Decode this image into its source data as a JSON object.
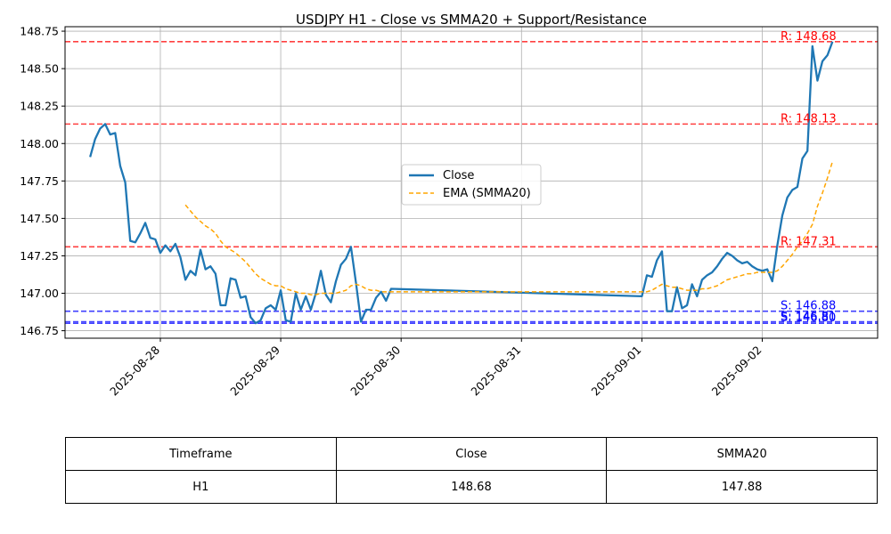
{
  "chart_data": {
    "type": "line",
    "title": "USDJPY H1 - Close vs SMMA20 + Support/Resistance",
    "xlim": [
      "2025-08-27 05:00",
      "2025-09-02 23:00"
    ],
    "ylim": [
      146.7,
      148.78
    ],
    "y_ticks": [
      146.75,
      147.0,
      147.25,
      147.5,
      147.75,
      148.0,
      148.25,
      148.5,
      148.75
    ],
    "y_tick_labels": [
      "146.75",
      "147.00",
      "147.25",
      "147.50",
      "147.75",
      "148.00",
      "148.25",
      "148.50",
      "148.75"
    ],
    "x_ticks": [
      "2025-08-28 00:00",
      "2025-08-29 00:00",
      "2025-08-30 00:00",
      "2025-08-31 00:00",
      "2025-09-01 00:00",
      "2025-09-02 00:00"
    ],
    "x_tick_labels": [
      "2025-08-28",
      "2025-08-29",
      "2025-08-30",
      "2025-08-31",
      "2025-09-01",
      "2025-09-02"
    ],
    "grid": true,
    "legend": {
      "placement": "center",
      "entries": [
        "Close",
        "EMA (SMMA20)"
      ]
    },
    "series": [
      {
        "name": "Close",
        "color": "#1f77b4",
        "style": "solid",
        "points": [
          [
            "2025-08-27 10:00",
            147.91
          ],
          [
            "2025-08-27 11:00",
            148.03
          ],
          [
            "2025-08-27 12:00",
            148.1
          ],
          [
            "2025-08-27 13:00",
            148.13
          ],
          [
            "2025-08-27 14:00",
            148.06
          ],
          [
            "2025-08-27 15:00",
            148.07
          ],
          [
            "2025-08-27 16:00",
            147.85
          ],
          [
            "2025-08-27 17:00",
            147.74
          ],
          [
            "2025-08-27 18:00",
            147.35
          ],
          [
            "2025-08-27 19:00",
            147.34
          ],
          [
            "2025-08-27 20:00",
            147.4
          ],
          [
            "2025-08-27 21:00",
            147.47
          ],
          [
            "2025-08-27 22:00",
            147.37
          ],
          [
            "2025-08-27 23:00",
            147.36
          ],
          [
            "2025-08-28 00:00",
            147.27
          ],
          [
            "2025-08-28 01:00",
            147.32
          ],
          [
            "2025-08-28 02:00",
            147.28
          ],
          [
            "2025-08-28 03:00",
            147.33
          ],
          [
            "2025-08-28 04:00",
            147.24
          ],
          [
            "2025-08-28 05:00",
            147.09
          ],
          [
            "2025-08-28 06:00",
            147.15
          ],
          [
            "2025-08-28 07:00",
            147.12
          ],
          [
            "2025-08-28 08:00",
            147.29
          ],
          [
            "2025-08-28 09:00",
            147.16
          ],
          [
            "2025-08-28 10:00",
            147.18
          ],
          [
            "2025-08-28 11:00",
            147.13
          ],
          [
            "2025-08-28 12:00",
            146.92
          ],
          [
            "2025-08-28 13:00",
            146.92
          ],
          [
            "2025-08-28 14:00",
            147.1
          ],
          [
            "2025-08-28 15:00",
            147.09
          ],
          [
            "2025-08-28 16:00",
            146.97
          ],
          [
            "2025-08-28 17:00",
            146.98
          ],
          [
            "2025-08-28 18:00",
            146.84
          ],
          [
            "2025-08-28 19:00",
            146.8
          ],
          [
            "2025-08-28 20:00",
            146.82
          ],
          [
            "2025-08-28 21:00",
            146.9
          ],
          [
            "2025-08-28 22:00",
            146.92
          ],
          [
            "2025-08-28 23:00",
            146.89
          ],
          [
            "2025-08-29 00:00",
            147.02
          ],
          [
            "2025-08-29 01:00",
            146.82
          ],
          [
            "2025-08-29 02:00",
            146.81
          ],
          [
            "2025-08-29 03:00",
            147.0
          ],
          [
            "2025-08-29 04:00",
            146.89
          ],
          [
            "2025-08-29 05:00",
            146.98
          ],
          [
            "2025-08-29 06:00",
            146.89
          ],
          [
            "2025-08-29 07:00",
            147.0
          ],
          [
            "2025-08-29 08:00",
            147.15
          ],
          [
            "2025-08-29 09:00",
            146.99
          ],
          [
            "2025-08-29 10:00",
            146.94
          ],
          [
            "2025-08-29 11:00",
            147.08
          ],
          [
            "2025-08-29 12:00",
            147.19
          ],
          [
            "2025-08-29 13:00",
            147.23
          ],
          [
            "2025-08-29 14:00",
            147.31
          ],
          [
            "2025-08-29 15:00",
            147.07
          ],
          [
            "2025-08-29 16:00",
            146.81
          ],
          [
            "2025-08-29 17:00",
            146.89
          ],
          [
            "2025-08-29 18:00",
            146.89
          ],
          [
            "2025-08-29 19:00",
            146.97
          ],
          [
            "2025-08-29 20:00",
            147.01
          ],
          [
            "2025-08-29 21:00",
            146.95
          ],
          [
            "2025-08-29 22:00",
            147.03
          ],
          [
            "2025-09-01 00:00",
            146.98
          ],
          [
            "2025-09-01 01:00",
            147.12
          ],
          [
            "2025-09-01 02:00",
            147.11
          ],
          [
            "2025-09-01 03:00",
            147.22
          ],
          [
            "2025-09-01 04:00",
            147.28
          ],
          [
            "2025-09-01 05:00",
            146.88
          ],
          [
            "2025-09-01 06:00",
            146.88
          ],
          [
            "2025-09-01 07:00",
            147.04
          ],
          [
            "2025-09-01 08:00",
            146.9
          ],
          [
            "2025-09-01 09:00",
            146.92
          ],
          [
            "2025-09-01 10:00",
            147.06
          ],
          [
            "2025-09-01 11:00",
            146.98
          ],
          [
            "2025-09-01 12:00",
            147.09
          ],
          [
            "2025-09-01 13:00",
            147.12
          ],
          [
            "2025-09-01 14:00",
            147.14
          ],
          [
            "2025-09-01 15:00",
            147.18
          ],
          [
            "2025-09-01 16:00",
            147.23
          ],
          [
            "2025-09-01 17:00",
            147.27
          ],
          [
            "2025-09-01 18:00",
            147.25
          ],
          [
            "2025-09-01 19:00",
            147.22
          ],
          [
            "2025-09-01 20:00",
            147.2
          ],
          [
            "2025-09-01 21:00",
            147.21
          ],
          [
            "2025-09-01 22:00",
            147.18
          ],
          [
            "2025-09-01 23:00",
            147.16
          ],
          [
            "2025-09-02 00:00",
            147.15
          ],
          [
            "2025-09-02 01:00",
            147.16
          ],
          [
            "2025-09-02 02:00",
            147.08
          ],
          [
            "2025-09-02 03:00",
            147.32
          ],
          [
            "2025-09-02 04:00",
            147.52
          ],
          [
            "2025-09-02 05:00",
            147.64
          ],
          [
            "2025-09-02 06:00",
            147.69
          ],
          [
            "2025-09-02 07:00",
            147.71
          ],
          [
            "2025-09-02 08:00",
            147.9
          ],
          [
            "2025-09-02 09:00",
            147.95
          ],
          [
            "2025-09-02 10:00",
            148.65
          ],
          [
            "2025-09-02 11:00",
            148.42
          ],
          [
            "2025-09-02 12:00",
            148.55
          ],
          [
            "2025-09-02 13:00",
            148.59
          ],
          [
            "2025-09-02 14:00",
            148.68
          ]
        ]
      },
      {
        "name": "EMA (SMMA20)",
        "color": "#ffa500",
        "style": "dashed",
        "points": [
          [
            "2025-08-28 05:00",
            147.59
          ],
          [
            "2025-08-28 06:00",
            147.55
          ],
          [
            "2025-08-28 07:00",
            147.51
          ],
          [
            "2025-08-28 08:00",
            147.48
          ],
          [
            "2025-08-28 09:00",
            147.45
          ],
          [
            "2025-08-28 10:00",
            147.43
          ],
          [
            "2025-08-28 11:00",
            147.4
          ],
          [
            "2025-08-28 12:00",
            147.35
          ],
          [
            "2025-08-28 13:00",
            147.31
          ],
          [
            "2025-08-28 14:00",
            147.29
          ],
          [
            "2025-08-28 15:00",
            147.27
          ],
          [
            "2025-08-28 16:00",
            147.24
          ],
          [
            "2025-08-28 17:00",
            147.21
          ],
          [
            "2025-08-28 18:00",
            147.17
          ],
          [
            "2025-08-28 19:00",
            147.13
          ],
          [
            "2025-08-28 20:00",
            147.1
          ],
          [
            "2025-08-28 21:00",
            147.08
          ],
          [
            "2025-08-28 22:00",
            147.06
          ],
          [
            "2025-08-28 23:00",
            147.05
          ],
          [
            "2025-08-29 00:00",
            147.05
          ],
          [
            "2025-08-29 01:00",
            147.03
          ],
          [
            "2025-08-29 02:00",
            147.02
          ],
          [
            "2025-08-29 03:00",
            147.01
          ],
          [
            "2025-08-29 04:00",
            147.0
          ],
          [
            "2025-08-29 05:00",
            147.0
          ],
          [
            "2025-08-29 06:00",
            146.99
          ],
          [
            "2025-08-29 07:00",
            146.99
          ],
          [
            "2025-08-29 08:00",
            147.0
          ],
          [
            "2025-08-29 09:00",
            147.0
          ],
          [
            "2025-08-29 10:00",
            147.0
          ],
          [
            "2025-08-29 11:00",
            147.0
          ],
          [
            "2025-08-29 12:00",
            147.01
          ],
          [
            "2025-08-29 13:00",
            147.02
          ],
          [
            "2025-08-29 14:00",
            147.05
          ],
          [
            "2025-08-29 15:00",
            147.06
          ],
          [
            "2025-08-29 16:00",
            147.05
          ],
          [
            "2025-08-29 17:00",
            147.03
          ],
          [
            "2025-08-29 18:00",
            147.02
          ],
          [
            "2025-08-29 19:00",
            147.02
          ],
          [
            "2025-08-29 20:00",
            147.01
          ],
          [
            "2025-08-29 21:00",
            147.01
          ],
          [
            "2025-08-29 22:00",
            147.01
          ],
          [
            "2025-09-01 00:00",
            147.01
          ],
          [
            "2025-09-01 01:00",
            147.01
          ],
          [
            "2025-09-01 02:00",
            147.02
          ],
          [
            "2025-09-01 03:00",
            147.04
          ],
          [
            "2025-09-01 04:00",
            147.06
          ],
          [
            "2025-09-01 05:00",
            147.05
          ],
          [
            "2025-09-01 06:00",
            147.04
          ],
          [
            "2025-09-01 07:00",
            147.04
          ],
          [
            "2025-09-01 08:00",
            147.03
          ],
          [
            "2025-09-01 09:00",
            147.02
          ],
          [
            "2025-09-01 10:00",
            147.02
          ],
          [
            "2025-09-01 11:00",
            147.02
          ],
          [
            "2025-09-01 12:00",
            147.03
          ],
          [
            "2025-09-01 13:00",
            147.03
          ],
          [
            "2025-09-01 14:00",
            147.04
          ],
          [
            "2025-09-01 15:00",
            147.05
          ],
          [
            "2025-09-01 16:00",
            147.07
          ],
          [
            "2025-09-01 17:00",
            147.09
          ],
          [
            "2025-09-01 18:00",
            147.1
          ],
          [
            "2025-09-01 19:00",
            147.11
          ],
          [
            "2025-09-01 20:00",
            147.12
          ],
          [
            "2025-09-01 21:00",
            147.13
          ],
          [
            "2025-09-01 22:00",
            147.13
          ],
          [
            "2025-09-01 23:00",
            147.14
          ],
          [
            "2025-09-02 00:00",
            147.14
          ],
          [
            "2025-09-02 01:00",
            147.14
          ],
          [
            "2025-09-02 02:00",
            147.14
          ],
          [
            "2025-09-02 03:00",
            147.15
          ],
          [
            "2025-09-02 04:00",
            147.18
          ],
          [
            "2025-09-02 05:00",
            147.22
          ],
          [
            "2025-09-02 06:00",
            147.26
          ],
          [
            "2025-09-02 07:00",
            147.31
          ],
          [
            "2025-09-02 08:00",
            147.35
          ],
          [
            "2025-09-02 09:00",
            147.4
          ],
          [
            "2025-09-02 10:00",
            147.46
          ],
          [
            "2025-09-02 11:00",
            147.58
          ],
          [
            "2025-09-02 12:00",
            147.67
          ],
          [
            "2025-09-02 13:00",
            147.77
          ],
          [
            "2025-09-02 14:00",
            147.88
          ]
        ]
      }
    ],
    "levels": [
      {
        "kind": "resistance",
        "value": 148.68,
        "label": "R: 148.68",
        "color": "#ff0000"
      },
      {
        "kind": "resistance",
        "value": 148.13,
        "label": "R: 148.13",
        "color": "#ff0000"
      },
      {
        "kind": "resistance",
        "value": 147.31,
        "label": "R: 147.31",
        "color": "#ff0000"
      },
      {
        "kind": "support",
        "value": 146.88,
        "label": "S: 146.88",
        "color": "#0000ff"
      },
      {
        "kind": "support",
        "value": 146.81,
        "label": "S: 146.81",
        "color": "#0000ff"
      },
      {
        "kind": "support",
        "value": 146.8,
        "label": "S: 146.80",
        "color": "#0000ff"
      }
    ]
  },
  "table": {
    "headers": [
      "Timeframe",
      "Close",
      "SMMA20"
    ],
    "rows": [
      [
        "H1",
        "148.68",
        "147.88"
      ]
    ]
  }
}
